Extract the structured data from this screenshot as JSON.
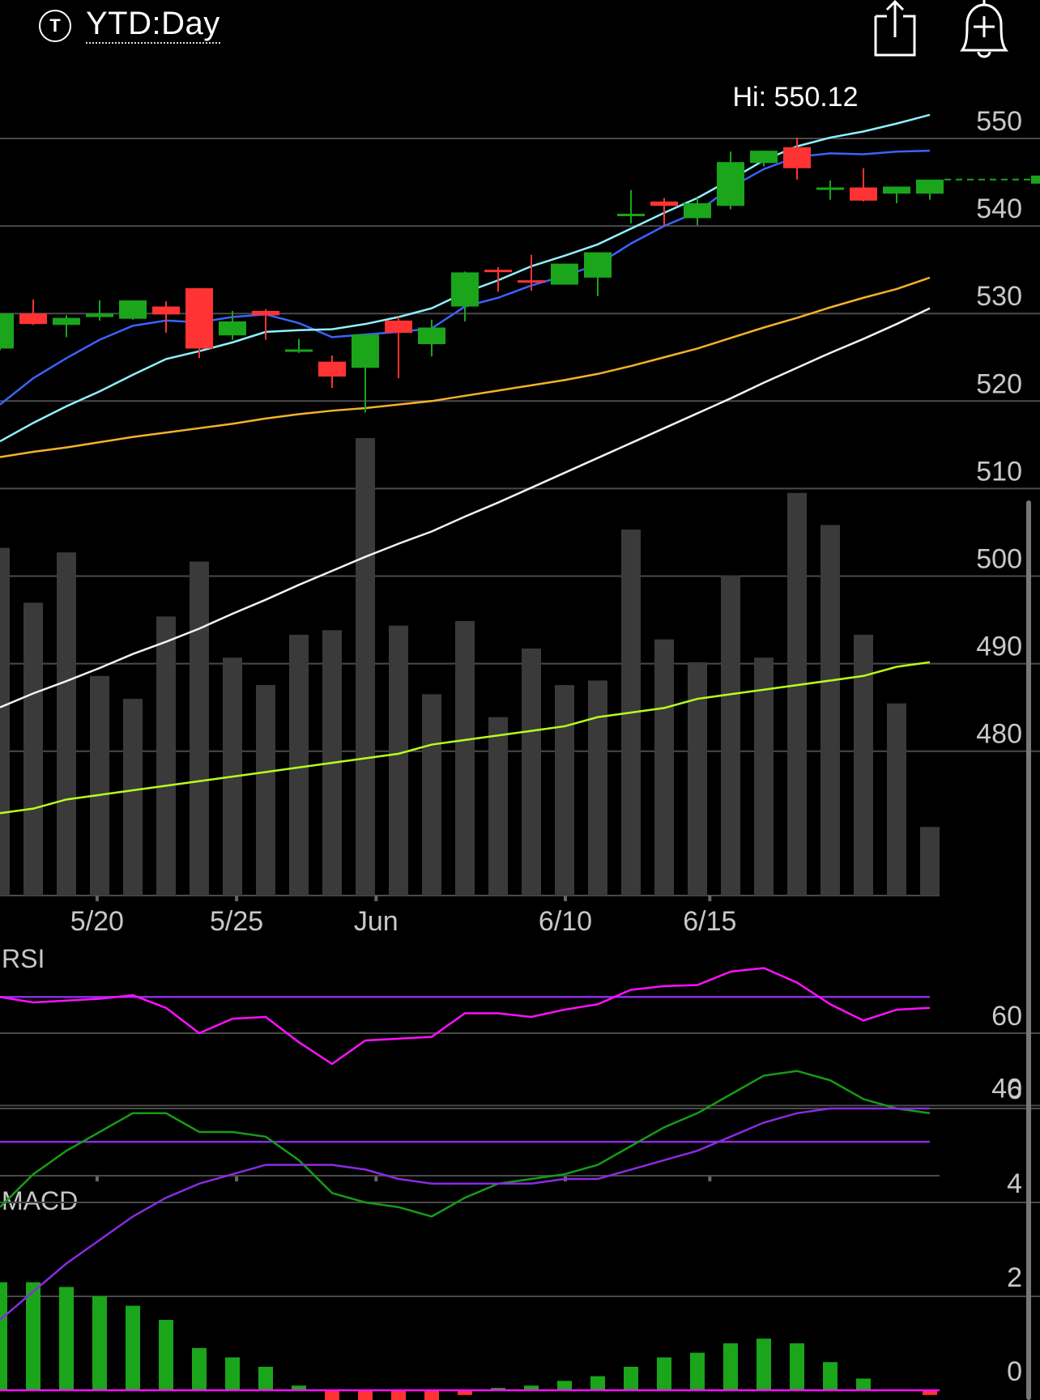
{
  "header": {
    "logo_letter": "T",
    "period_label": "YTD:Day"
  },
  "price_panel": {
    "hi_label": "Hi: 550.12",
    "hi_value": 550.12
  },
  "chart_data": {
    "type": "candlestick",
    "price_axis_ticks": [
      550,
      540,
      530,
      520,
      510,
      500,
      490,
      480
    ],
    "x_tick_labels": [
      {
        "index": 2.9,
        "label": "5/20"
      },
      {
        "index": 7.1,
        "label": "5/25"
      },
      {
        "index": 11.3,
        "label": "Jun"
      },
      {
        "index": 17.0,
        "label": "6/10"
      },
      {
        "index": 21.35,
        "label": "6/15"
      }
    ],
    "candles": [
      {
        "o": 526.0,
        "h": 530.0,
        "l": 525.8,
        "c": 530.0
      },
      {
        "o": 530.0,
        "h": 531.6,
        "l": 528.7,
        "c": 528.8
      },
      {
        "o": 528.7,
        "h": 529.8,
        "l": 527.3,
        "c": 529.5
      },
      {
        "o": 529.6,
        "h": 531.5,
        "l": 529.2,
        "c": 530.0
      },
      {
        "o": 529.4,
        "h": 531.4,
        "l": 529.3,
        "c": 531.5
      },
      {
        "o": 530.8,
        "h": 531.4,
        "l": 527.8,
        "c": 529.9
      },
      {
        "o": 532.9,
        "h": 532.9,
        "l": 524.9,
        "c": 526.0
      },
      {
        "o": 527.5,
        "h": 530.3,
        "l": 527.0,
        "c": 529.1
      },
      {
        "o": 530.3,
        "h": 530.5,
        "l": 527.0,
        "c": 529.8
      },
      {
        "o": 525.8,
        "h": 527.1,
        "l": 525.5,
        "c": 525.9
      },
      {
        "o": 524.5,
        "h": 525.2,
        "l": 521.5,
        "c": 522.8
      },
      {
        "o": 523.8,
        "h": 527.5,
        "l": 518.7,
        "c": 527.6
      },
      {
        "o": 529.2,
        "h": 529.6,
        "l": 522.6,
        "c": 527.8
      },
      {
        "o": 526.5,
        "h": 529.3,
        "l": 525.1,
        "c": 528.4
      },
      {
        "o": 530.8,
        "h": 534.8,
        "l": 529.1,
        "c": 534.7
      },
      {
        "o": 535.0,
        "h": 535.3,
        "l": 532.5,
        "c": 534.9
      },
      {
        "o": 533.8,
        "h": 536.7,
        "l": 532.6,
        "c": 533.7
      },
      {
        "o": 533.3,
        "h": 535.6,
        "l": 533.3,
        "c": 535.7
      },
      {
        "o": 534.1,
        "h": 536.8,
        "l": 532.0,
        "c": 537.0
      },
      {
        "o": 541.3,
        "h": 544.1,
        "l": 540.3,
        "c": 541.4
      },
      {
        "o": 542.8,
        "h": 543.2,
        "l": 540.0,
        "c": 542.3
      },
      {
        "o": 540.9,
        "h": 543.2,
        "l": 540.1,
        "c": 542.6
      },
      {
        "o": 542.3,
        "h": 548.5,
        "l": 541.9,
        "c": 547.3
      },
      {
        "o": 547.2,
        "h": 548.6,
        "l": 546.8,
        "c": 548.6
      },
      {
        "o": 549.0,
        "h": 550.1,
        "l": 545.3,
        "c": 546.6
      },
      {
        "o": 544.3,
        "h": 545.2,
        "l": 543.0,
        "c": 544.4
      },
      {
        "o": 544.4,
        "h": 546.6,
        "l": 542.8,
        "c": 542.9
      },
      {
        "o": 543.7,
        "h": 544.4,
        "l": 542.6,
        "c": 544.5
      },
      {
        "o": 543.7,
        "h": 545.2,
        "l": 543.0,
        "c": 545.3
      }
    ],
    "last_price": 545.3,
    "moving_averages": [
      {
        "color": "#3a63ff",
        "values": [
          519.6,
          522.6,
          524.9,
          527.0,
          528.6,
          529.2,
          529.0,
          529.6,
          529.9,
          528.9,
          527.3,
          527.6,
          527.9,
          528.3,
          530.8,
          531.8,
          533.2,
          534.3,
          535.6,
          538.0,
          540.0,
          541.6,
          544.4,
          546.5,
          547.9,
          548.3,
          548.2,
          548.5,
          548.6
        ]
      },
      {
        "color": "#8ff2ff",
        "values": [
          515.4,
          517.5,
          519.4,
          521.1,
          523.0,
          524.8,
          525.7,
          526.7,
          527.9,
          528.1,
          528.2,
          528.8,
          529.6,
          530.6,
          532.4,
          533.8,
          535.4,
          536.6,
          537.9,
          539.7,
          541.5,
          543.2,
          545.3,
          547.5,
          549.1,
          550.1,
          550.8,
          551.7,
          552.7
        ]
      },
      {
        "color": "#f5b22a",
        "values": [
          513.6,
          514.2,
          514.7,
          515.3,
          515.9,
          516.4,
          516.9,
          517.4,
          518.0,
          518.5,
          518.9,
          519.2,
          519.6,
          520.0,
          520.6,
          521.2,
          521.8,
          522.4,
          523.1,
          524.0,
          525.0,
          526.0,
          527.2,
          528.4,
          529.5,
          530.7,
          531.8,
          532.8,
          534.1
        ]
      },
      {
        "color": "#f2f2f2",
        "values": [
          485.0,
          486.6,
          488.0,
          489.5,
          491.1,
          492.5,
          494.0,
          495.7,
          497.3,
          499.0,
          500.6,
          502.2,
          503.7,
          505.1,
          506.8,
          508.4,
          510.1,
          511.8,
          513.5,
          515.2,
          516.9,
          518.6,
          520.3,
          522.1,
          523.8,
          525.5,
          527.1,
          528.8,
          530.6
        ]
      }
    ],
    "volume": [
      0.76,
      0.64,
      0.75,
      0.48,
      0.43,
      0.61,
      0.73,
      0.52,
      0.46,
      0.57,
      0.58,
      1.0,
      0.59,
      0.44,
      0.6,
      0.39,
      0.54,
      0.46,
      0.47,
      0.8,
      0.56,
      0.51,
      0.7,
      0.52,
      0.88,
      0.81,
      0.57,
      0.42,
      0.15
    ],
    "volume_ma": [
      0.18,
      0.19,
      0.21,
      0.22,
      0.23,
      0.24,
      0.25,
      0.26,
      0.27,
      0.28,
      0.29,
      0.3,
      0.31,
      0.33,
      0.34,
      0.35,
      0.36,
      0.37,
      0.39,
      0.4,
      0.41,
      0.43,
      0.44,
      0.45,
      0.46,
      0.47,
      0.48,
      0.5,
      0.51
    ],
    "rsi": {
      "label": "RSI",
      "ticks": [
        60,
        40
      ],
      "overbought": 70,
      "oversold": 30,
      "values": [
        70,
        68.5,
        69,
        69.5,
        70.5,
        67,
        60,
        64,
        64.5,
        57.5,
        51.5,
        58,
        58.5,
        59,
        65.5,
        65.5,
        64.5,
        66.5,
        68,
        72,
        73,
        73.3,
        77,
        78,
        74,
        68,
        63.5,
        66.5,
        67
      ]
    },
    "macd": {
      "label": "MACD",
      "ticks": [
        6,
        4,
        2,
        0
      ],
      "macd_line": [
        3.9,
        4.6,
        5.1,
        5.5,
        5.9,
        5.9,
        5.5,
        5.5,
        5.4,
        4.9,
        4.2,
        4.0,
        3.9,
        3.7,
        4.1,
        4.4,
        4.5,
        4.6,
        4.8,
        5.2,
        5.6,
        5.9,
        6.3,
        6.7,
        6.8,
        6.6,
        6.2,
        6.0,
        5.9
      ],
      "signal_line": [
        1.5,
        2.1,
        2.7,
        3.2,
        3.7,
        4.1,
        4.4,
        4.6,
        4.8,
        4.8,
        4.8,
        4.7,
        4.5,
        4.4,
        4.4,
        4.4,
        4.4,
        4.5,
        4.5,
        4.7,
        4.9,
        5.1,
        5.4,
        5.7,
        5.9,
        6.0,
        6.0,
        6.0,
        6.0
      ],
      "histogram": [
        2.3,
        2.3,
        2.2,
        2.0,
        1.8,
        1.5,
        0.9,
        0.7,
        0.5,
        0.1,
        -0.4,
        -0.5,
        -0.5,
        -0.5,
        -0.1,
        0.05,
        0.1,
        0.2,
        0.3,
        0.5,
        0.7,
        0.8,
        1.0,
        1.1,
        1.0,
        0.6,
        0.25,
        0.02,
        -0.1
      ]
    }
  },
  "colors": {
    "up": "#1aa51a",
    "down": "#ff3333",
    "grid": "#4a4a4a",
    "axis_text": "#c8c8c8",
    "rsi_line": "#ff10ff",
    "rsi_bands": "#8a2be2",
    "macd_line": "#169c16",
    "signal_line": "#8a2be2",
    "volume_bar": "#3a3a3a",
    "volume_ma": "#b6ff1e"
  }
}
